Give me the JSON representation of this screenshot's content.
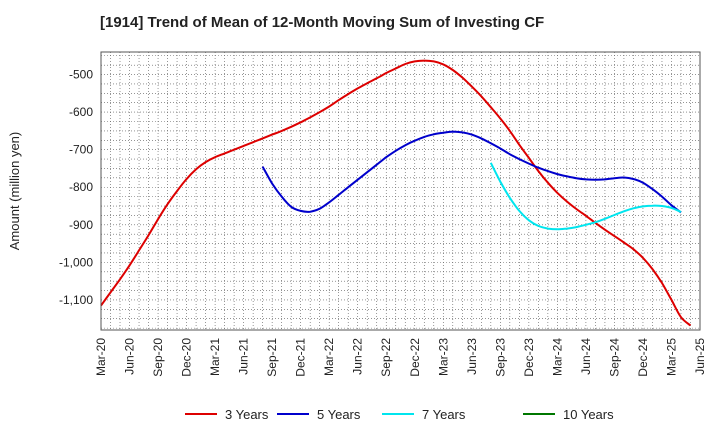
{
  "chart_data": {
    "type": "line",
    "title": "[1914]  Trend of Mean of 12-Month Moving Sum of Investing CF",
    "xlabel": "",
    "ylabel": "Amount (million yen)",
    "ylim": [
      -1180,
      -440
    ],
    "y_ticks": [
      -500,
      -600,
      -700,
      -800,
      -900,
      -1000,
      -1100
    ],
    "y_tick_labels": [
      "-500",
      "-600",
      "-700",
      "-800",
      "-900",
      "-1,000",
      "-1,100"
    ],
    "x_ticks": [
      "Mar-20",
      "Jun-20",
      "Sep-20",
      "Dec-20",
      "Mar-21",
      "Jun-21",
      "Sep-21",
      "Dec-21",
      "Mar-22",
      "Jun-22",
      "Sep-22",
      "Dec-22",
      "Mar-23",
      "Jun-23",
      "Sep-23",
      "Dec-23",
      "Mar-24",
      "Jun-24",
      "Sep-24",
      "Dec-24",
      "Mar-25",
      "Jun-25"
    ],
    "grid": true,
    "legend_position": "bottom",
    "series": [
      {
        "name": "3 Years",
        "color": "#dd0000",
        "points": [
          [
            "Mar-20",
            -1115
          ],
          [
            "Apr-20",
            -1080
          ],
          [
            "May-20",
            -1045
          ],
          [
            "Jun-20",
            -1008
          ],
          [
            "Jul-20",
            -968
          ],
          [
            "Aug-20",
            -928
          ],
          [
            "Sep-20",
            -885
          ],
          [
            "Oct-20",
            -845
          ],
          [
            "Nov-20",
            -810
          ],
          [
            "Dec-20",
            -778
          ],
          [
            "Jan-21",
            -752
          ],
          [
            "Feb-21",
            -733
          ],
          [
            "Mar-21",
            -720
          ],
          [
            "Apr-21",
            -710
          ],
          [
            "May-21",
            -700
          ],
          [
            "Jun-21",
            -690
          ],
          [
            "Jul-21",
            -680
          ],
          [
            "Aug-21",
            -670
          ],
          [
            "Sep-21",
            -660
          ],
          [
            "Oct-21",
            -650
          ],
          [
            "Nov-21",
            -639
          ],
          [
            "Dec-21",
            -627
          ],
          [
            "Jan-22",
            -614
          ],
          [
            "Feb-22",
            -600
          ],
          [
            "Mar-22",
            -585
          ],
          [
            "Apr-22",
            -568
          ],
          [
            "May-22",
            -552
          ],
          [
            "Jun-22",
            -537
          ],
          [
            "Jul-22",
            -523
          ],
          [
            "Aug-22",
            -510
          ],
          [
            "Sep-22",
            -496
          ],
          [
            "Oct-22",
            -484
          ],
          [
            "Nov-22",
            -472
          ],
          [
            "Dec-22",
            -465
          ],
          [
            "Jan-23",
            -463
          ],
          [
            "Feb-23",
            -465
          ],
          [
            "Mar-23",
            -473
          ],
          [
            "Apr-23",
            -488
          ],
          [
            "May-23",
            -508
          ],
          [
            "Jun-23",
            -532
          ],
          [
            "Jul-23",
            -558
          ],
          [
            "Aug-23",
            -587
          ],
          [
            "Sep-23",
            -617
          ],
          [
            "Oct-23",
            -650
          ],
          [
            "Nov-23",
            -687
          ],
          [
            "Dec-23",
            -722
          ],
          [
            "Jan-24",
            -757
          ],
          [
            "Feb-24",
            -788
          ],
          [
            "Mar-24",
            -815
          ],
          [
            "Apr-24",
            -838
          ],
          [
            "May-24",
            -858
          ],
          [
            "Jun-24",
            -876
          ],
          [
            "Jul-24",
            -895
          ],
          [
            "Aug-24",
            -913
          ],
          [
            "Sep-24",
            -930
          ],
          [
            "Oct-24",
            -947
          ],
          [
            "Nov-24",
            -965
          ],
          [
            "Dec-24",
            -988
          ],
          [
            "Jan-25",
            -1018
          ],
          [
            "Feb-25",
            -1055
          ],
          [
            "Mar-25",
            -1100
          ],
          [
            "Apr-25",
            -1146
          ],
          [
            "May-25",
            -1168
          ]
        ]
      },
      {
        "name": "5 Years",
        "color": "#0000cc",
        "points": [
          [
            "Aug-21",
            -745
          ],
          [
            "Sep-21",
            -790
          ],
          [
            "Oct-21",
            -825
          ],
          [
            "Nov-21",
            -852
          ],
          [
            "Dec-21",
            -863
          ],
          [
            "Jan-22",
            -865
          ],
          [
            "Feb-22",
            -857
          ],
          [
            "Mar-22",
            -840
          ],
          [
            "Apr-22",
            -820
          ],
          [
            "May-22",
            -800
          ],
          [
            "Jun-22",
            -780
          ],
          [
            "Jul-22",
            -760
          ],
          [
            "Aug-22",
            -740
          ],
          [
            "Sep-22",
            -720
          ],
          [
            "Oct-22",
            -703
          ],
          [
            "Nov-22",
            -688
          ],
          [
            "Dec-22",
            -676
          ],
          [
            "Jan-23",
            -666
          ],
          [
            "Feb-23",
            -659
          ],
          [
            "Mar-23",
            -655
          ],
          [
            "Apr-23",
            -652
          ],
          [
            "May-23",
            -654
          ],
          [
            "Jun-23",
            -660
          ],
          [
            "Jul-23",
            -670
          ],
          [
            "Aug-23",
            -683
          ],
          [
            "Sep-23",
            -697
          ],
          [
            "Oct-23",
            -712
          ],
          [
            "Nov-23",
            -725
          ],
          [
            "Dec-23",
            -737
          ],
          [
            "Jan-24",
            -748
          ],
          [
            "Feb-24",
            -757
          ],
          [
            "Mar-24",
            -765
          ],
          [
            "Apr-24",
            -771
          ],
          [
            "May-24",
            -776
          ],
          [
            "Jun-24",
            -779
          ],
          [
            "Jul-24",
            -780
          ],
          [
            "Aug-24",
            -779
          ],
          [
            "Sep-24",
            -776
          ],
          [
            "Oct-24",
            -774
          ],
          [
            "Nov-24",
            -778
          ],
          [
            "Dec-24",
            -788
          ],
          [
            "Jan-25",
            -805
          ],
          [
            "Feb-25",
            -825
          ],
          [
            "Mar-25",
            -848
          ],
          [
            "Apr-25",
            -867
          ]
        ]
      },
      {
        "name": "7 Years",
        "color": "#00e5ee",
        "points": [
          [
            "Aug-23",
            -735
          ],
          [
            "Sep-23",
            -785
          ],
          [
            "Oct-23",
            -828
          ],
          [
            "Nov-23",
            -863
          ],
          [
            "Dec-23",
            -888
          ],
          [
            "Jan-24",
            -903
          ],
          [
            "Feb-24",
            -910
          ],
          [
            "Mar-24",
            -912
          ],
          [
            "Apr-24",
            -910
          ],
          [
            "May-24",
            -906
          ],
          [
            "Jun-24",
            -900
          ],
          [
            "Jul-24",
            -893
          ],
          [
            "Aug-24",
            -884
          ],
          [
            "Sep-24",
            -874
          ],
          [
            "Oct-24",
            -864
          ],
          [
            "Nov-24",
            -856
          ],
          [
            "Dec-24",
            -851
          ],
          [
            "Jan-25",
            -849
          ],
          [
            "Feb-25",
            -850
          ],
          [
            "Mar-25",
            -855
          ],
          [
            "Apr-25",
            -866
          ]
        ]
      },
      {
        "name": "10 Years",
        "color": "#007700",
        "points": []
      }
    ]
  }
}
